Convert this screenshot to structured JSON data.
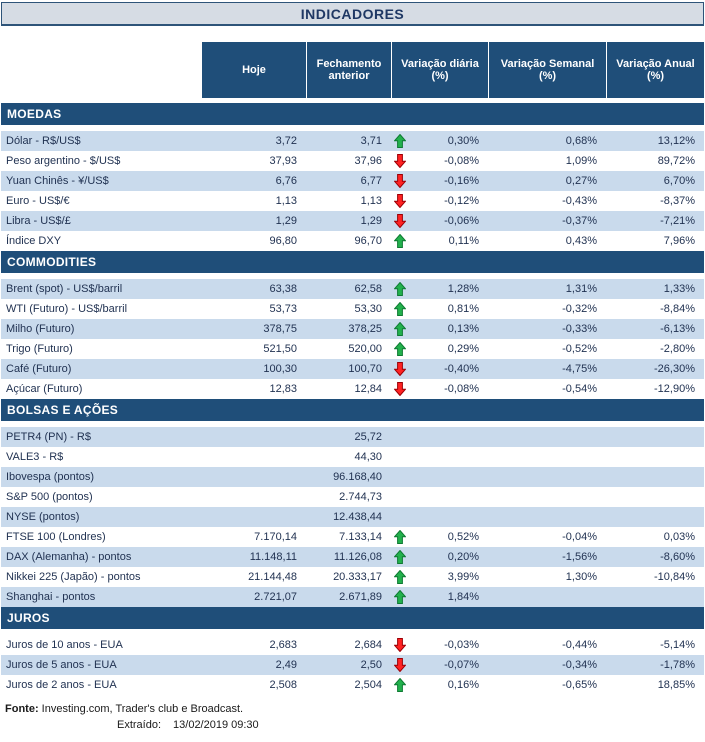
{
  "chart_data": {
    "type": "table",
    "title": "INDICADORES",
    "columns": [
      "Hoje",
      "Fechamento anterior",
      "Variação diária (%)",
      "Variação Semanal (%)",
      "Variação Anual (%)"
    ],
    "sections": [
      {
        "name": "MOEDAS",
        "rows": [
          {
            "label": "Dólar - R$/US$",
            "hoje": "3,72",
            "fechamento": "3,71",
            "trend": "up",
            "diaria": "0,30%",
            "semanal": "0,68%",
            "anual": "13,12%"
          },
          {
            "label": "Peso argentino - $/US$",
            "hoje": "37,93",
            "fechamento": "37,96",
            "trend": "down",
            "diaria": "-0,08%",
            "semanal": "1,09%",
            "anual": "89,72%"
          },
          {
            "label": "Yuan Chinês - ¥/US$",
            "hoje": "6,76",
            "fechamento": "6,77",
            "trend": "down",
            "diaria": "-0,16%",
            "semanal": "0,27%",
            "anual": "6,70%"
          },
          {
            "label": "Euro - US$/€",
            "hoje": "1,13",
            "fechamento": "1,13",
            "trend": "down",
            "diaria": "-0,12%",
            "semanal": "-0,43%",
            "anual": "-8,37%"
          },
          {
            "label": "Libra - US$/£",
            "hoje": "1,29",
            "fechamento": "1,29",
            "trend": "down",
            "diaria": "-0,06%",
            "semanal": "-0,37%",
            "anual": "-7,21%"
          },
          {
            "label": "Índice DXY",
            "hoje": "96,80",
            "fechamento": "96,70",
            "trend": "up",
            "diaria": "0,11%",
            "semanal": "0,43%",
            "anual": "7,96%"
          }
        ]
      },
      {
        "name": "COMMODITIES",
        "rows": [
          {
            "label": "Brent (spot) - US$/barril",
            "hoje": "63,38",
            "fechamento": "62,58",
            "trend": "up",
            "diaria": "1,28%",
            "semanal": "1,31%",
            "anual": "1,33%"
          },
          {
            "label": "WTI (Futuro) - US$/barril",
            "hoje": "53,73",
            "fechamento": "53,30",
            "trend": "up",
            "diaria": "0,81%",
            "semanal": "-0,32%",
            "anual": "-8,84%"
          },
          {
            "label": "Milho (Futuro)",
            "hoje": "378,75",
            "fechamento": "378,25",
            "trend": "up",
            "diaria": "0,13%",
            "semanal": "-0,33%",
            "anual": "-6,13%"
          },
          {
            "label": "Trigo (Futuro)",
            "hoje": "521,50",
            "fechamento": "520,00",
            "trend": "up",
            "diaria": "0,29%",
            "semanal": "-0,52%",
            "anual": "-2,80%"
          },
          {
            "label": "Café (Futuro)",
            "hoje": "100,30",
            "fechamento": "100,70",
            "trend": "down",
            "diaria": "-0,40%",
            "semanal": "-4,75%",
            "anual": "-26,30%"
          },
          {
            "label": "Açúcar (Futuro)",
            "hoje": "12,83",
            "fechamento": "12,84",
            "trend": "down",
            "diaria": "-0,08%",
            "semanal": "-0,54%",
            "anual": "-12,90%"
          }
        ]
      },
      {
        "name": "BOLSAS E AÇÕES",
        "rows": [
          {
            "label": "PETR4 (PN) - R$",
            "hoje": "",
            "fechamento": "25,72",
            "trend": "",
            "diaria": "",
            "semanal": "",
            "anual": ""
          },
          {
            "label": "VALE3 - R$",
            "hoje": "",
            "fechamento": "44,30",
            "trend": "",
            "diaria": "",
            "semanal": "",
            "anual": ""
          },
          {
            "label": "Ibovespa (pontos)",
            "hoje": "",
            "fechamento": "96.168,40",
            "trend": "",
            "diaria": "",
            "semanal": "",
            "anual": ""
          },
          {
            "label": "S&P 500 (pontos)",
            "hoje": "",
            "fechamento": "2.744,73",
            "trend": "",
            "diaria": "",
            "semanal": "",
            "anual": ""
          },
          {
            "label": "NYSE (pontos)",
            "hoje": "",
            "fechamento": "12.438,44",
            "trend": "",
            "diaria": "",
            "semanal": "",
            "anual": ""
          },
          {
            "label": "FTSE 100 (Londres)",
            "hoje": "7.170,14",
            "fechamento": "7.133,14",
            "trend": "up",
            "diaria": "0,52%",
            "semanal": "-0,04%",
            "anual": "0,03%"
          },
          {
            "label": "DAX (Alemanha) - pontos",
            "hoje": "11.148,11",
            "fechamento": "11.126,08",
            "trend": "up",
            "diaria": "0,20%",
            "semanal": "-1,56%",
            "anual": "-8,60%"
          },
          {
            "label": "Nikkei 225 (Japão) - pontos",
            "hoje": "21.144,48",
            "fechamento": "20.333,17",
            "trend": "up",
            "diaria": "3,99%",
            "semanal": "1,30%",
            "anual": "-10,84%"
          },
          {
            "label": "Shanghai - pontos",
            "hoje": "2.721,07",
            "fechamento": "2.671,89",
            "trend": "up",
            "diaria": "1,84%",
            "semanal": "",
            "anual": ""
          }
        ]
      },
      {
        "name": "JUROS",
        "rows": [
          {
            "label": "Juros de 10 anos - EUA",
            "hoje": "2,683",
            "fechamento": "2,684",
            "trend": "down",
            "diaria": "-0,03%",
            "semanal": "-0,44%",
            "anual": "-5,14%"
          },
          {
            "label": "Juros de 5 anos - EUA",
            "hoje": "2,49",
            "fechamento": "2,50",
            "trend": "down",
            "diaria": "-0,07%",
            "semanal": "-0,34%",
            "anual": "-1,78%"
          },
          {
            "label": "Juros de 2 anos - EUA",
            "hoje": "2,508",
            "fechamento": "2,504",
            "trend": "up",
            "diaria": "0,16%",
            "semanal": "-0,65%",
            "anual": "18,85%"
          }
        ]
      }
    ]
  },
  "footer": {
    "fonte_label": "Fonte:",
    "fonte_text": " Investing.com, Trader's club e Broadcast.",
    "extraido_label": "Extraído:",
    "extraido_value": "13/02/2019 09:30"
  },
  "colors": {
    "navy": "#1F4E79",
    "title_bg": "#D6DCE4",
    "row_shaded": "#C9DAEC",
    "up": "#23B14D",
    "up_outline": "#0E7A33",
    "down": "#FF2222",
    "down_outline": "#9C0006"
  }
}
